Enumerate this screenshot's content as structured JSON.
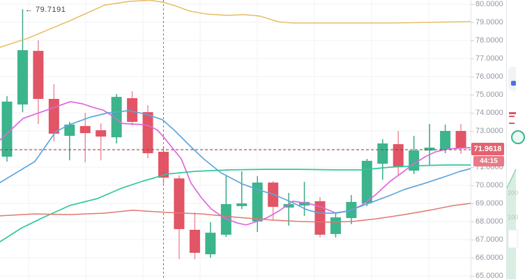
{
  "chart": {
    "annotation": "← 79.7191",
    "price_label": "71.9618",
    "countdown": "44:15",
    "axis_labels": [
      "80.0000",
      "79.0000",
      "78.0000",
      "77.0000",
      "76.0000",
      "75.0000",
      "74.0000",
      "73.0000",
      "72.0000",
      "71.0000",
      "70.0000",
      "69.0000",
      "68.0000",
      "67.0000",
      "66.0000",
      "65.0000"
    ],
    "crosshair_index": 10
  },
  "side_panel": {
    "depth_labels": [
      "200",
      "100"
    ]
  },
  "colors": {
    "up": "#3cb48c",
    "down": "#e15566",
    "wick_up": "#3aa98a",
    "wick_down": "#ee8f9b",
    "grid": "#eff2f6",
    "axis_border": "#e1e4e9",
    "price_line": "#8e3b44",
    "crosshair": "#6a7f90",
    "badge": "#e5616f",
    "badge2": "#ea7a87"
  },
  "chart_data": {
    "type": "candlestick",
    "title": "",
    "ylim": [
      64.85,
      80.25
    ],
    "y_tick_step": 1,
    "grid": true,
    "last_price": 71.9618,
    "y_axis": {
      "p_top": 80,
      "y_top": 6,
      "p_bottom": 65,
      "y_bottom": 396
    },
    "x_layout": {
      "start": 10,
      "step": 22.45,
      "body_width": 15,
      "plot_right": 675
    },
    "candles": [
      {
        "o": 71.58,
        "h": 74.92,
        "l": 71.31,
        "c": 74.62
      },
      {
        "o": 74.46,
        "h": 79.72,
        "l": 74.04,
        "c": 77.46
      },
      {
        "o": 77.42,
        "h": 78.0,
        "l": 73.38,
        "c": 74.77
      },
      {
        "o": 74.77,
        "h": 75.58,
        "l": 72.42,
        "c": 72.85
      },
      {
        "o": 72.73,
        "h": 73.5,
        "l": 71.38,
        "c": 73.35
      },
      {
        "o": 73.27,
        "h": 74.0,
        "l": 71.27,
        "c": 72.88
      },
      {
        "o": 73.04,
        "h": 73.42,
        "l": 71.38,
        "c": 72.69
      },
      {
        "o": 72.65,
        "h": 75.04,
        "l": 72.31,
        "c": 74.88
      },
      {
        "o": 74.81,
        "h": 75.19,
        "l": 73.31,
        "c": 73.5
      },
      {
        "o": 74.04,
        "h": 74.42,
        "l": 71.5,
        "c": 71.77
      },
      {
        "o": 71.85,
        "h": 72.15,
        "l": 70.04,
        "c": 70.42
      },
      {
        "o": 70.38,
        "h": 70.54,
        "l": 65.92,
        "c": 67.58
      },
      {
        "o": 67.54,
        "h": 68.5,
        "l": 65.92,
        "c": 66.27
      },
      {
        "o": 66.19,
        "h": 67.96,
        "l": 66.0,
        "c": 67.38
      },
      {
        "o": 67.27,
        "h": 70.54,
        "l": 67.15,
        "c": 68.96
      },
      {
        "o": 68.85,
        "h": 70.77,
        "l": 68.69,
        "c": 69.0
      },
      {
        "o": 68.0,
        "h": 70.5,
        "l": 67.42,
        "c": 70.15
      },
      {
        "o": 70.15,
        "h": 70.23,
        "l": 68.04,
        "c": 68.81
      },
      {
        "o": 68.77,
        "h": 69.58,
        "l": 67.77,
        "c": 68.96
      },
      {
        "o": 68.88,
        "h": 70.19,
        "l": 68.31,
        "c": 69.08
      },
      {
        "o": 69.12,
        "h": 69.35,
        "l": 67.12,
        "c": 67.27
      },
      {
        "o": 67.31,
        "h": 68.46,
        "l": 67.12,
        "c": 68.23
      },
      {
        "o": 68.19,
        "h": 69.46,
        "l": 67.85,
        "c": 69.08
      },
      {
        "o": 69.0,
        "h": 71.46,
        "l": 68.85,
        "c": 71.35
      },
      {
        "o": 71.19,
        "h": 72.54,
        "l": 70.31,
        "c": 72.31
      },
      {
        "o": 72.27,
        "h": 73.0,
        "l": 70.54,
        "c": 71.04
      },
      {
        "o": 70.81,
        "h": 72.73,
        "l": 70.62,
        "c": 71.92
      },
      {
        "o": 71.92,
        "h": 73.38,
        "l": 71.12,
        "c": 72.08
      },
      {
        "o": 71.96,
        "h": 73.35,
        "l": 71.77,
        "c": 73.0
      },
      {
        "o": 73.0,
        "h": 73.38,
        "l": 71.73,
        "c": 72.04
      }
    ],
    "series": [
      {
        "name": "upper-band",
        "color": "#e8c06a",
        "width": 1.6,
        "points": [
          [
            0,
            77.62
          ],
          [
            40,
            78.12
          ],
          [
            100,
            79.08
          ],
          [
            150,
            79.95
          ],
          [
            185,
            80.15
          ],
          [
            215,
            80.22
          ],
          [
            235,
            80.1
          ],
          [
            252,
            79.9
          ],
          [
            272,
            79.62
          ],
          [
            295,
            79.46
          ],
          [
            325,
            79.38
          ],
          [
            350,
            79.42
          ],
          [
            372,
            79.35
          ],
          [
            400,
            79.02
          ],
          [
            420,
            78.96
          ],
          [
            470,
            78.96
          ],
          [
            520,
            78.96
          ],
          [
            565,
            78.96
          ],
          [
            620,
            79.0
          ],
          [
            675,
            79.04
          ]
        ]
      },
      {
        "name": "ma-fast",
        "color": "#df67de",
        "width": 1.7,
        "points": [
          [
            0,
            72.5
          ],
          [
            33,
            73.69
          ],
          [
            67,
            74.15
          ],
          [
            101,
            74.62
          ],
          [
            118,
            74.5
          ],
          [
            133,
            74.31
          ],
          [
            148,
            74.15
          ],
          [
            162,
            73.81
          ],
          [
            174,
            73.42
          ],
          [
            190,
            73.38
          ],
          [
            205,
            73.35
          ],
          [
            215,
            73.27
          ],
          [
            226,
            73.04
          ],
          [
            235,
            72.65
          ],
          [
            246,
            72.12
          ],
          [
            260,
            71.46
          ],
          [
            274,
            70.12
          ],
          [
            288,
            69.35
          ],
          [
            303,
            68.69
          ],
          [
            322,
            68.19
          ],
          [
            340,
            67.92
          ],
          [
            353,
            67.81
          ],
          [
            367,
            67.98
          ],
          [
            382,
            68.19
          ],
          [
            400,
            68.58
          ],
          [
            420,
            69.12
          ],
          [
            442,
            69.0
          ],
          [
            460,
            68.81
          ],
          [
            482,
            68.46
          ],
          [
            500,
            68.58
          ],
          [
            518,
            68.88
          ],
          [
            537,
            69.42
          ],
          [
            560,
            70.23
          ],
          [
            578,
            70.73
          ],
          [
            592,
            71.15
          ],
          [
            610,
            71.58
          ],
          [
            625,
            71.85
          ],
          [
            642,
            72.0
          ],
          [
            660,
            72.05
          ],
          [
            675,
            72.08
          ]
        ]
      },
      {
        "name": "ma-mid",
        "color": "#5ea6dc",
        "width": 1.7,
        "points": [
          [
            0,
            70.15
          ],
          [
            25,
            70.73
          ],
          [
            50,
            71.31
          ],
          [
            80,
            72.96
          ],
          [
            100,
            73.35
          ],
          [
            130,
            73.77
          ],
          [
            155,
            74.0
          ],
          [
            185,
            74.12
          ],
          [
            210,
            73.92
          ],
          [
            233,
            73.62
          ],
          [
            250,
            73.04
          ],
          [
            262,
            72.58
          ],
          [
            275,
            72.08
          ],
          [
            292,
            71.46
          ],
          [
            317,
            70.69
          ],
          [
            347,
            70.08
          ],
          [
            372,
            69.73
          ],
          [
            392,
            69.5
          ],
          [
            420,
            69.04
          ],
          [
            440,
            68.65
          ],
          [
            458,
            68.46
          ],
          [
            478,
            68.46
          ],
          [
            500,
            68.58
          ],
          [
            518,
            68.85
          ],
          [
            537,
            69.12
          ],
          [
            558,
            69.42
          ],
          [
            580,
            69.77
          ],
          [
            610,
            70.12
          ],
          [
            640,
            70.5
          ],
          [
            660,
            70.77
          ],
          [
            675,
            70.92
          ]
        ]
      },
      {
        "name": "ma-slow",
        "color": "#2fc79f",
        "width": 1.7,
        "points": [
          [
            0,
            66.88
          ],
          [
            30,
            67.62
          ],
          [
            60,
            68.19
          ],
          [
            100,
            68.88
          ],
          [
            140,
            69.27
          ],
          [
            175,
            69.85
          ],
          [
            205,
            70.23
          ],
          [
            240,
            70.62
          ],
          [
            280,
            70.77
          ],
          [
            330,
            70.85
          ],
          [
            380,
            70.88
          ],
          [
            430,
            70.88
          ],
          [
            480,
            70.85
          ],
          [
            520,
            70.85
          ],
          [
            560,
            71.0
          ],
          [
            600,
            71.08
          ],
          [
            640,
            71.12
          ],
          [
            675,
            71.12
          ]
        ]
      },
      {
        "name": "ma-baseline",
        "color": "#e0776e",
        "width": 1.5,
        "points": [
          [
            0,
            68.31
          ],
          [
            50,
            68.42
          ],
          [
            100,
            68.38
          ],
          [
            150,
            68.46
          ],
          [
            190,
            68.62
          ],
          [
            240,
            68.5
          ],
          [
            290,
            68.42
          ],
          [
            340,
            68.23
          ],
          [
            390,
            68.08
          ],
          [
            430,
            68.0
          ],
          [
            470,
            67.96
          ],
          [
            505,
            68.0
          ],
          [
            540,
            68.15
          ],
          [
            580,
            68.38
          ],
          [
            620,
            68.65
          ],
          [
            650,
            68.88
          ],
          [
            675,
            69.0
          ]
        ]
      }
    ]
  }
}
